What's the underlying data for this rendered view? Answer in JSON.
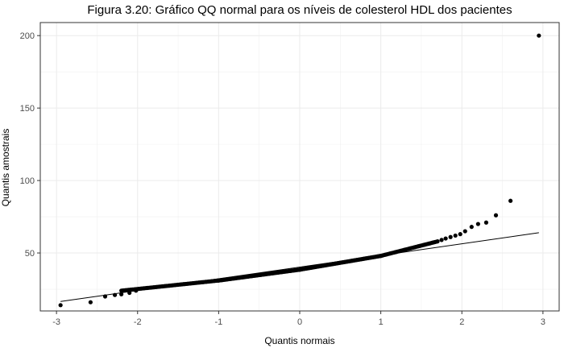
{
  "chart_data": {
    "type": "scatter",
    "title": "Figura 3.20: Gráfico QQ normal para os níveis de colesterol HDL dos pacientes",
    "xlabel": "Quantis normais",
    "ylabel": "Quantis amostrais",
    "xlim": [
      -3.2,
      3.2
    ],
    "ylim": [
      10,
      209
    ],
    "x_ticks": [
      -3,
      -2,
      -1,
      0,
      1,
      2,
      3
    ],
    "y_ticks": [
      50,
      100,
      150,
      200
    ],
    "grid": true,
    "reference_line": {
      "x": [
        -2.95,
        2.95
      ],
      "y": [
        16.5,
        64
      ]
    },
    "point_groups": [
      {
        "x_range": [
          -2.2,
          -1.0
        ],
        "y_range": [
          24,
          31
        ],
        "count": 70
      },
      {
        "x_range": [
          -1.0,
          0.0
        ],
        "y_range": [
          31,
          38.5
        ],
        "count": 90
      },
      {
        "x_range": [
          0.0,
          1.0
        ],
        "y_range": [
          38.5,
          48
        ],
        "count": 90
      },
      {
        "x_range": [
          1.0,
          1.7
        ],
        "y_range": [
          48,
          58
        ],
        "count": 45
      }
    ],
    "points": [
      {
        "x": -2.95,
        "y": 14
      },
      {
        "x": -2.58,
        "y": 16
      },
      {
        "x": -2.4,
        "y": 20
      },
      {
        "x": -2.28,
        "y": 21
      },
      {
        "x": -2.2,
        "y": 21.5
      },
      {
        "x": -2.1,
        "y": 22.5
      },
      {
        "x": -2.02,
        "y": 24
      },
      {
        "x": 1.75,
        "y": 59
      },
      {
        "x": 1.8,
        "y": 60
      },
      {
        "x": 1.86,
        "y": 61
      },
      {
        "x": 1.92,
        "y": 62
      },
      {
        "x": 1.98,
        "y": 63
      },
      {
        "x": 2.04,
        "y": 65
      },
      {
        "x": 2.12,
        "y": 68
      },
      {
        "x": 2.2,
        "y": 70
      },
      {
        "x": 2.3,
        "y": 71
      },
      {
        "x": 2.42,
        "y": 76
      },
      {
        "x": 2.6,
        "y": 86
      },
      {
        "x": 2.95,
        "y": 200
      }
    ]
  }
}
